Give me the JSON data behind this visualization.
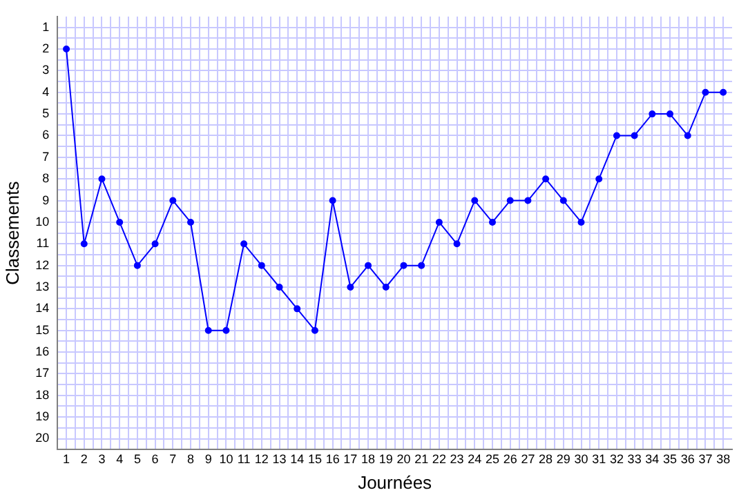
{
  "chart_data": {
    "type": "line",
    "xlabel": "Journées",
    "ylabel": "Classements",
    "x": [
      1,
      2,
      3,
      4,
      5,
      6,
      7,
      8,
      9,
      10,
      11,
      12,
      13,
      14,
      15,
      16,
      17,
      18,
      19,
      20,
      21,
      22,
      23,
      24,
      25,
      26,
      27,
      28,
      29,
      30,
      31,
      32,
      33,
      34,
      35,
      36,
      37,
      38
    ],
    "series": [
      {
        "color": "#0000ff",
        "values": [
          2,
          11,
          8,
          10,
          12,
          11,
          9,
          10,
          15,
          15,
          11,
          12,
          13,
          14,
          15,
          9,
          13,
          12,
          13,
          12,
          12,
          10,
          11,
          9,
          10,
          9,
          9,
          8,
          9,
          10,
          8,
          6,
          6,
          5,
          5,
          6,
          4,
          4
        ]
      }
    ],
    "xlim": [
      0.5,
      38.5
    ],
    "ylim": [
      20.5,
      0.5
    ],
    "xticks": [
      1,
      {
        "value": 1.5,
        "label": null
      },
      2,
      {
        "value": 2.5,
        "label": null
      },
      3,
      {
        "value": 3.5,
        "label": null
      },
      4,
      {
        "value": 4.5,
        "label": null
      },
      5,
      {
        "value": 5.5,
        "label": null
      },
      6,
      {
        "value": 6.5,
        "label": null
      },
      7,
      {
        "value": 7.5,
        "label": null
      },
      8,
      {
        "value": 8.5,
        "label": null
      },
      9,
      {
        "value": 9.5,
        "label": null
      },
      10,
      {
        "value": 10.5,
        "label": null
      },
      11,
      {
        "value": 11.5,
        "label": null
      },
      12,
      {
        "value": 12.5,
        "label": null
      },
      13,
      {
        "value": 13.5,
        "label": null
      },
      14,
      {
        "value": 14.5,
        "label": null
      },
      15,
      {
        "value": 15.5,
        "label": null
      },
      16,
      {
        "value": 16.5,
        "label": null
      },
      17,
      {
        "value": 17.5,
        "label": null
      },
      18,
      {
        "value": 18.5,
        "label": null
      },
      19,
      {
        "value": 19.5,
        "label": null
      },
      20,
      {
        "value": 20.5,
        "label": null
      },
      21,
      {
        "value": 21.5,
        "label": null
      },
      22,
      {
        "value": 22.5,
        "label": null
      },
      23,
      {
        "value": 23.5,
        "label": null
      },
      24,
      {
        "value": 24.5,
        "label": null
      },
      25,
      {
        "value": 25.5,
        "label": null
      },
      26,
      {
        "value": 26.5,
        "label": null
      },
      27,
      {
        "value": 27.5,
        "label": null
      },
      28,
      {
        "value": 28.5,
        "label": null
      },
      29,
      {
        "value": 29.5,
        "label": null
      },
      30,
      {
        "value": 30.5,
        "label": null
      },
      31,
      {
        "value": 31.5,
        "label": null
      },
      32,
      {
        "value": 32.5,
        "label": null
      },
      33,
      {
        "value": 33.5,
        "label": null
      },
      34,
      {
        "value": 34.5,
        "label": null
      },
      35,
      {
        "value": 35.5,
        "label": null
      },
      36,
      {
        "value": 36.5,
        "label": null
      },
      37,
      {
        "value": 37.5,
        "label": null
      },
      38
    ],
    "yticks": [
      1,
      {
        "value": 1.5,
        "label": null
      },
      2,
      {
        "value": 2.5,
        "label": null
      },
      3,
      {
        "value": 3.5,
        "label": null
      },
      4,
      {
        "value": 4.5,
        "label": null
      },
      5,
      {
        "value": 5.5,
        "label": null
      },
      6,
      {
        "value": 6.5,
        "label": null
      },
      7,
      {
        "value": 7.5,
        "label": null
      },
      8,
      {
        "value": 8.5,
        "label": null
      },
      9,
      {
        "value": 9.5,
        "label": null
      },
      10,
      {
        "value": 10.5,
        "label": null
      },
      11,
      {
        "value": 11.5,
        "label": null
      },
      12,
      {
        "value": 12.5,
        "label": null
      },
      13,
      {
        "value": 13.5,
        "label": null
      },
      14,
      {
        "value": 14.5,
        "label": null
      },
      15,
      {
        "value": 15.5,
        "label": null
      },
      16,
      {
        "value": 16.5,
        "label": null
      },
      17,
      {
        "value": 17.5,
        "label": null
      },
      18,
      {
        "value": 18.5,
        "label": null
      },
      19,
      {
        "value": 19.5,
        "label": null
      },
      20
    ],
    "grid": true,
    "legend": false,
    "marker": "circle",
    "line_style": "solid"
  }
}
